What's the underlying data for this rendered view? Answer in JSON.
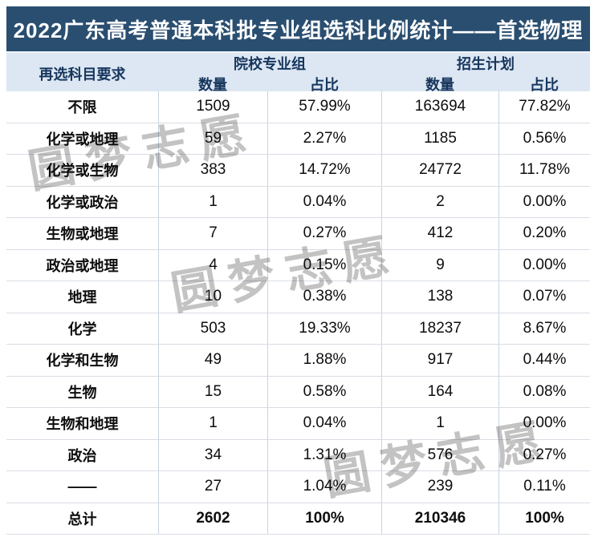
{
  "page": {
    "title": "2022广东高考普通本科批专业组选科比例统计——首选物理",
    "watermark_text": "圆梦志愿"
  },
  "colors": {
    "title_bar_bg": "#2a4e70",
    "title_text": "#ffffff",
    "header_bg": "#dce7f3",
    "header_text": "#17365d",
    "grid_line_vertical": "#c9d3e0",
    "grid_line_horizontal": "#d8dde4",
    "watermark": "#c3c3c3",
    "body_text": "#0d0d0d"
  },
  "table": {
    "row_header": "再选科目要求",
    "groups": [
      {
        "label": "院校专业组",
        "sub": [
          "数量",
          "占比"
        ]
      },
      {
        "label": "招生计划",
        "sub": [
          "数量",
          "占比"
        ]
      }
    ]
  },
  "chart_data": {
    "type": "table",
    "title": "2022广东高考普通本科批专业组选科比例统计——首选物理",
    "column_groups": [
      "院校专业组",
      "招生计划"
    ],
    "columns": [
      "再选科目要求",
      "数量",
      "占比",
      "数量",
      "占比"
    ],
    "rows": [
      [
        "不限",
        "1509",
        "57.99%",
        "163694",
        "77.82%"
      ],
      [
        "化学或地理",
        "59",
        "2.27%",
        "1185",
        "0.56%"
      ],
      [
        "化学或生物",
        "383",
        "14.72%",
        "24772",
        "11.78%"
      ],
      [
        "化学或政治",
        "1",
        "0.04%",
        "2",
        "0.00%"
      ],
      [
        "生物或地理",
        "7",
        "0.27%",
        "412",
        "0.20%"
      ],
      [
        "政治或地理",
        "4",
        "0.15%",
        "9",
        "0.00%"
      ],
      [
        "地理",
        "10",
        "0.38%",
        "138",
        "0.07%"
      ],
      [
        "化学",
        "503",
        "19.33%",
        "18237",
        "8.67%"
      ],
      [
        "化学和生物",
        "49",
        "1.88%",
        "917",
        "0.44%"
      ],
      [
        "生物",
        "15",
        "0.58%",
        "164",
        "0.08%"
      ],
      [
        "生物和地理",
        "1",
        "0.04%",
        "1",
        "0.00%"
      ],
      [
        "政治",
        "34",
        "1.31%",
        "576",
        "0.27%"
      ],
      [
        "——",
        "27",
        "1.04%",
        "239",
        "0.11%"
      ]
    ],
    "total": [
      "总计",
      "2602",
      "100%",
      "210346",
      "100%"
    ]
  }
}
